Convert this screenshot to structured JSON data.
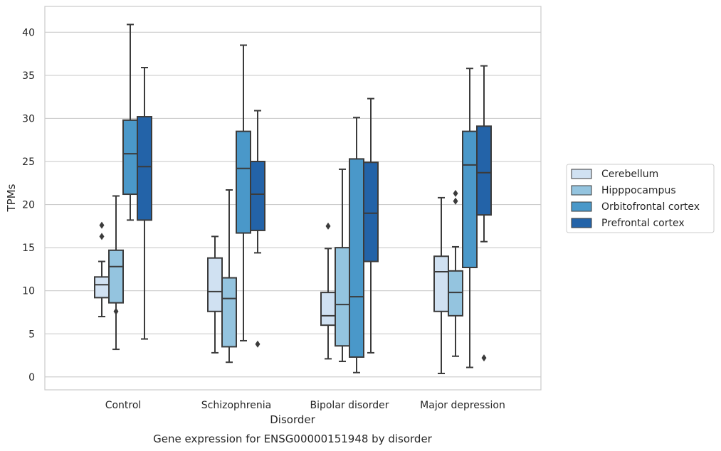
{
  "chart_data": {
    "type": "box",
    "caption": "Gene expression for ENSG00000151948 by disorder",
    "xlabel": "Disorder",
    "ylabel": "TPMs",
    "ylim": [
      -1.5,
      43
    ],
    "yticks": [
      0,
      5,
      10,
      15,
      20,
      25,
      30,
      35,
      40
    ],
    "grid": "horizontal",
    "legend_position": "right",
    "categories": [
      "Control",
      "Schizophrenia",
      "Bipolar disorder",
      "Major depression"
    ],
    "series": [
      {
        "name": "Cerebellum",
        "color": "#d0e1f2",
        "boxes": [
          {
            "whisker_low": 7.0,
            "q1": 9.2,
            "median": 10.7,
            "q3": 11.6,
            "whisker_high": 13.4,
            "outliers": [
              16.3,
              17.6
            ]
          },
          {
            "whisker_low": 2.8,
            "q1": 7.6,
            "median": 9.9,
            "q3": 13.8,
            "whisker_high": 16.3,
            "outliers": []
          },
          {
            "whisker_low": 2.1,
            "q1": 6.0,
            "median": 7.1,
            "q3": 9.8,
            "whisker_high": 14.9,
            "outliers": [
              17.5
            ]
          },
          {
            "whisker_low": 0.4,
            "q1": 7.6,
            "median": 12.2,
            "q3": 14.0,
            "whisker_high": 20.8,
            "outliers": []
          }
        ]
      },
      {
        "name": "Hipppocampus",
        "color": "#94c4df",
        "boxes": [
          {
            "whisker_low": 3.2,
            "q1": 8.6,
            "median": 12.8,
            "q3": 14.7,
            "whisker_high": 21.0,
            "outliers": [
              7.6
            ]
          },
          {
            "whisker_low": 1.7,
            "q1": 3.5,
            "median": 9.1,
            "q3": 11.5,
            "whisker_high": 21.7,
            "outliers": []
          },
          {
            "whisker_low": 1.8,
            "q1": 3.6,
            "median": 8.4,
            "q3": 15.0,
            "whisker_high": 24.1,
            "outliers": []
          },
          {
            "whisker_low": 2.4,
            "q1": 7.1,
            "median": 9.8,
            "q3": 12.3,
            "whisker_high": 15.1,
            "outliers": [
              20.4,
              21.3
            ]
          }
        ]
      },
      {
        "name": "Orbitofrontal cortex",
        "color": "#4a98c9",
        "boxes": [
          {
            "whisker_low": 18.2,
            "q1": 21.2,
            "median": 25.9,
            "q3": 29.8,
            "whisker_high": 40.9,
            "outliers": []
          },
          {
            "whisker_low": 4.2,
            "q1": 16.7,
            "median": 24.2,
            "q3": 28.5,
            "whisker_high": 38.5,
            "outliers": []
          },
          {
            "whisker_low": 0.5,
            "q1": 2.3,
            "median": 9.3,
            "q3": 25.3,
            "whisker_high": 30.1,
            "outliers": []
          },
          {
            "whisker_low": 1.1,
            "q1": 12.7,
            "median": 24.6,
            "q3": 28.5,
            "whisker_high": 35.8,
            "outliers": []
          }
        ]
      },
      {
        "name": "Prefrontal cortex",
        "color": "#2363a8",
        "boxes": [
          {
            "whisker_low": 4.4,
            "q1": 18.2,
            "median": 24.4,
            "q3": 30.2,
            "whisker_high": 35.9,
            "outliers": []
          },
          {
            "whisker_low": 14.4,
            "q1": 17.0,
            "median": 21.2,
            "q3": 25.0,
            "whisker_high": 30.9,
            "outliers": [
              3.8
            ]
          },
          {
            "whisker_low": 2.8,
            "q1": 13.4,
            "median": 19.0,
            "q3": 24.9,
            "whisker_high": 32.3,
            "outliers": []
          },
          {
            "whisker_low": 15.7,
            "q1": 18.8,
            "median": 23.7,
            "q3": 29.1,
            "whisker_high": 36.1,
            "outliers": [
              2.2
            ]
          }
        ]
      }
    ]
  }
}
